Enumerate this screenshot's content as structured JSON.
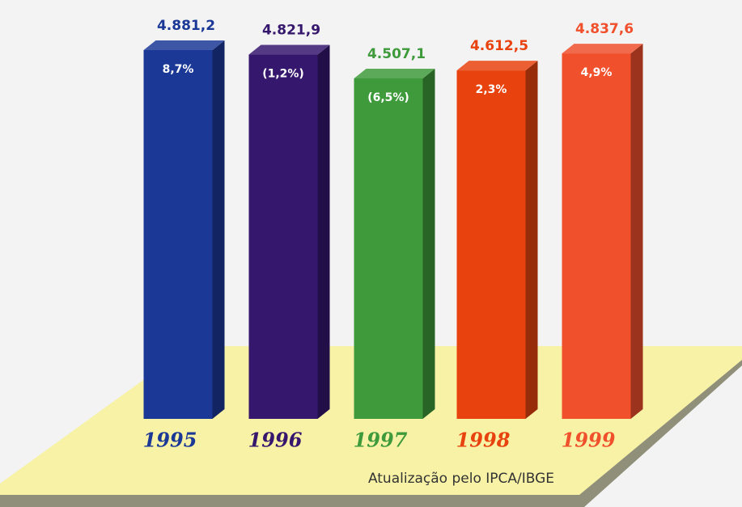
{
  "chart_data": {
    "type": "bar3d",
    "categories": [
      "1995",
      "1996",
      "1997",
      "1998",
      "1999"
    ],
    "values": [
      4881.2,
      4821.9,
      4507.1,
      4612.5,
      4837.6
    ],
    "value_labels": [
      "4.881,2",
      "4.821,9",
      "4.507,1",
      "4.612,5",
      "4.837,6"
    ],
    "changes": [
      8.7,
      -1.2,
      -6.5,
      2.3,
      4.9
    ],
    "change_labels": [
      "8,7%",
      "(1,2%)",
      "(6,5%)",
      "2,3%",
      "4,9%"
    ],
    "colors": [
      "#1b3896",
      "#36176e",
      "#3f9a3c",
      "#e8430f",
      "#f0502c"
    ],
    "note": "Atualização pelo IPCA/IBGE"
  }
}
